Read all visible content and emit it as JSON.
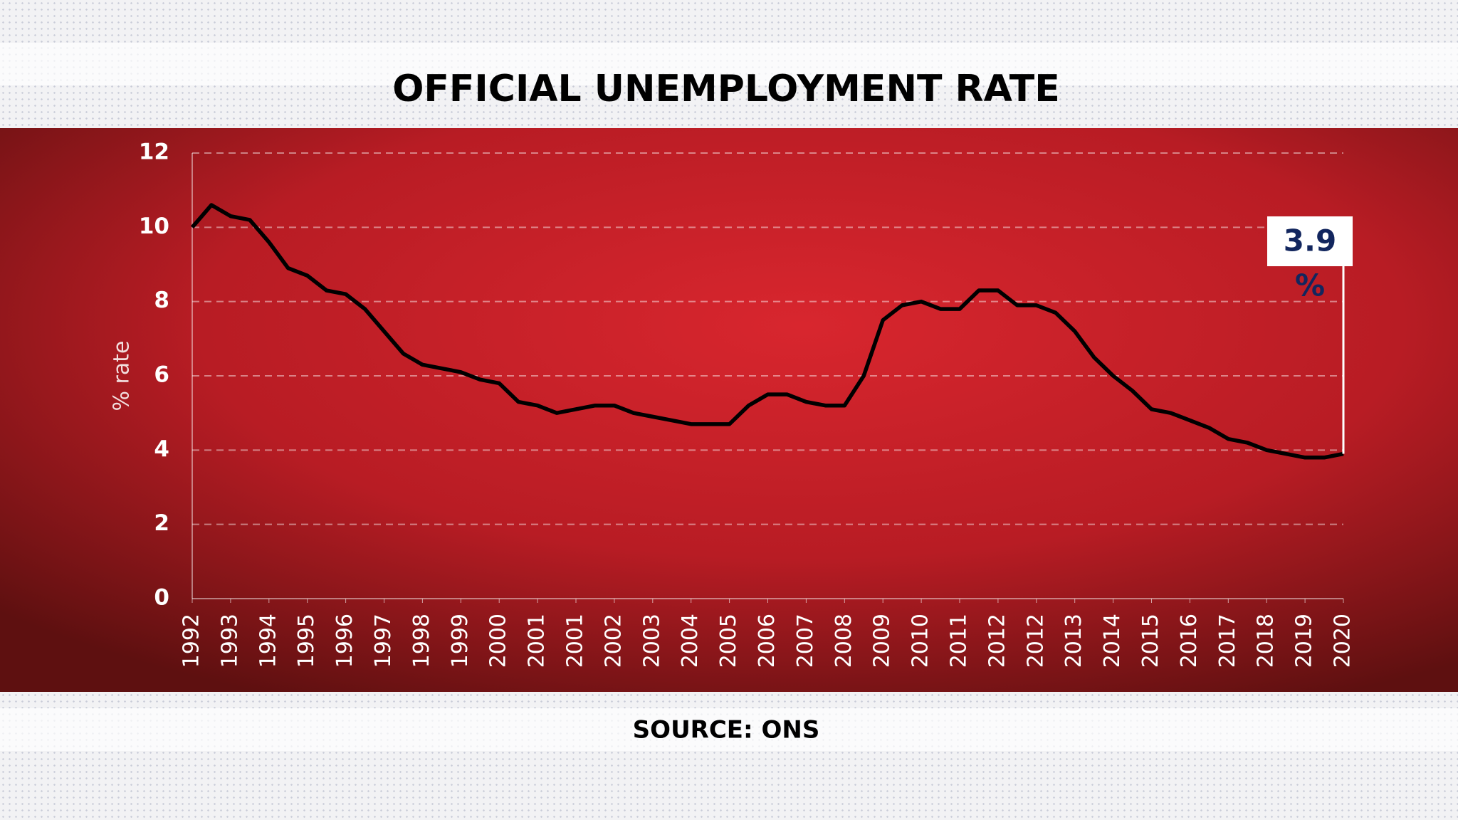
{
  "chart_data": {
    "type": "line",
    "title": "OFFICIAL UNEMPLOYMENT RATE",
    "ylabel": "% rate",
    "source": "SOURCE: ONS",
    "x": [
      0,
      0.5,
      1,
      1.5,
      2,
      2.5,
      3,
      3.5,
      4,
      4.5,
      5,
      5.5,
      6,
      6.5,
      7,
      7.5,
      8,
      8.5,
      9,
      9.5,
      10,
      10.5,
      11,
      11.5,
      12,
      12.5,
      13,
      13.5,
      14,
      14.5,
      15,
      15.5,
      16,
      16.5,
      17,
      17.5,
      18,
      18.5,
      19,
      19.5,
      20,
      20.5,
      21,
      21.5,
      22,
      22.5,
      23,
      23.5,
      24,
      24.5,
      25,
      25.5,
      26,
      26.5,
      27,
      27.5,
      28,
      28.5,
      29,
      29.5,
      30
    ],
    "series": [
      {
        "name": "Unemployment rate",
        "color": "#000000",
        "values": [
          10.0,
          10.6,
          10.3,
          10.2,
          9.6,
          8.9,
          8.7,
          8.3,
          8.2,
          7.8,
          7.2,
          6.6,
          6.3,
          6.2,
          6.1,
          5.9,
          5.8,
          5.3,
          5.2,
          5.0,
          5.1,
          5.2,
          5.2,
          5.0,
          4.9,
          4.8,
          4.7,
          4.7,
          4.7,
          5.2,
          5.5,
          5.5,
          5.3,
          5.2,
          5.2,
          6.0,
          7.5,
          7.9,
          8.0,
          7.8,
          7.8,
          8.3,
          8.3,
          7.9,
          7.9,
          7.7,
          7.2,
          6.5,
          6.0,
          5.6,
          5.1,
          5.0,
          4.8,
          4.6,
          4.3,
          4.2,
          4.0,
          3.9,
          3.8,
          3.8,
          3.9
        ]
      }
    ],
    "xlim": [
      0,
      30
    ],
    "xticks": [
      {
        "value": 0,
        "label": "1992"
      },
      {
        "value": 1,
        "label": "1993"
      },
      {
        "value": 2,
        "label": "1994"
      },
      {
        "value": 3,
        "label": "1995"
      },
      {
        "value": 4,
        "label": "1996"
      },
      {
        "value": 5,
        "label": "1997"
      },
      {
        "value": 6,
        "label": "1998"
      },
      {
        "value": 7,
        "label": "1999"
      },
      {
        "value": 8,
        "label": "2000"
      },
      {
        "value": 9,
        "label": "2001"
      },
      {
        "value": 10,
        "label": "2001"
      },
      {
        "value": 11,
        "label": "2002"
      },
      {
        "value": 12,
        "label": "2003"
      },
      {
        "value": 13,
        "label": "2004"
      },
      {
        "value": 14,
        "label": "2005"
      },
      {
        "value": 15,
        "label": "2006"
      },
      {
        "value": 16,
        "label": "2007"
      },
      {
        "value": 17,
        "label": "2008"
      },
      {
        "value": 18,
        "label": "2009"
      },
      {
        "value": 19,
        "label": "2010"
      },
      {
        "value": 20,
        "label": "2011"
      },
      {
        "value": 21,
        "label": "2012"
      },
      {
        "value": 22,
        "label": "2012"
      },
      {
        "value": 23,
        "label": "2013"
      },
      {
        "value": 24,
        "label": "2014"
      },
      {
        "value": 25,
        "label": "2015"
      },
      {
        "value": 26,
        "label": "2016"
      },
      {
        "value": 27,
        "label": "2017"
      },
      {
        "value": 28,
        "label": "2018"
      },
      {
        "value": 29,
        "label": "2019"
      },
      {
        "value": 30,
        "label": "2020"
      }
    ],
    "ylim": [
      0,
      12
    ],
    "yticks": [
      0,
      2,
      4,
      6,
      8,
      10,
      12
    ],
    "grid": true,
    "callout_value": 3.9,
    "callout_unit": "%"
  }
}
